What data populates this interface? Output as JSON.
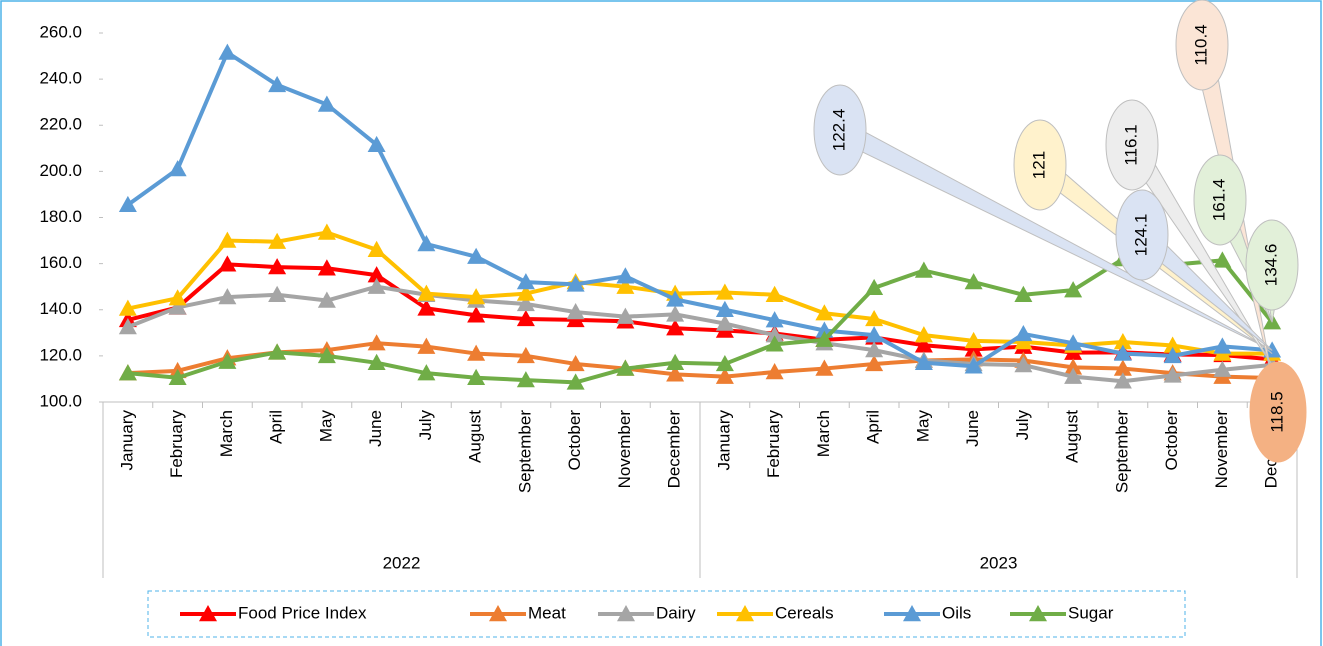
{
  "chart_data": {
    "type": "line",
    "categories": [
      "January",
      "February",
      "March",
      "April",
      "May",
      "June",
      "July",
      "August",
      "September",
      "October",
      "November",
      "December",
      "January",
      "February",
      "March",
      "April",
      "May",
      "June",
      "July",
      "August",
      "September",
      "October",
      "November",
      "December"
    ],
    "years": [
      "2022",
      "2023"
    ],
    "ylim": [
      100,
      260
    ],
    "yticks": [
      {
        "value": 100,
        "label": "100.0"
      },
      {
        "value": 120,
        "label": "120.0"
      },
      {
        "value": 140,
        "label": "140.0"
      },
      {
        "value": 160,
        "label": "160.0"
      },
      {
        "value": 180,
        "label": "180.0"
      },
      {
        "value": 200,
        "label": "200.0"
      },
      {
        "value": 220,
        "label": "220.0"
      },
      {
        "value": 240,
        "label": "240.0"
      },
      {
        "value": 260,
        "label": "260.0"
      }
    ],
    "legend": "bottom",
    "series": [
      {
        "name": "Food Price Index",
        "color": "#ff0000",
        "values": [
          135.6,
          141,
          159.7,
          158.5,
          158,
          155,
          140.6,
          137.6,
          136,
          135.6,
          135,
          132,
          131,
          129.7,
          127,
          128,
          124.6,
          122.8,
          124,
          121.4,
          121.5,
          120.6,
          120.4,
          118.5
        ]
      },
      {
        "name": "Meat",
        "color": "#ed7d31",
        "values": [
          112.5,
          113.5,
          119,
          121.5,
          122.5,
          125.5,
          124,
          121,
          120,
          116.5,
          114.5,
          112,
          111,
          113,
          114.5,
          116.5,
          118,
          118.5,
          118,
          115,
          114.5,
          112.5,
          111,
          110.4
        ]
      },
      {
        "name": "Dairy",
        "color": "#a5a5a5",
        "values": [
          132.5,
          141,
          145.5,
          146.5,
          144,
          150,
          146.5,
          144,
          142.5,
          139,
          137,
          138,
          134,
          129,
          125.5,
          122.5,
          118,
          116.5,
          116,
          111,
          109,
          111.5,
          114,
          116.1
        ]
      },
      {
        "name": "Cereals",
        "color": "#ffc000",
        "values": [
          140.5,
          145,
          170,
          169.5,
          173.5,
          166,
          147,
          145.5,
          147,
          152,
          150,
          147,
          147.5,
          146.5,
          138.5,
          136,
          129,
          126.5,
          126,
          124.5,
          126,
          124.5,
          121,
          121
        ]
      },
      {
        "name": "Oils",
        "color": "#5b9bd5",
        "values": [
          185.5,
          201,
          251.5,
          237.5,
          229,
          211.5,
          168.5,
          163,
          152,
          151,
          154.5,
          144.5,
          140,
          135.5,
          131,
          129,
          117,
          115.5,
          129.5,
          125.5,
          121,
          120,
          124.1,
          122.4
        ]
      },
      {
        "name": "Sugar",
        "color": "#70ad47",
        "values": [
          112.5,
          110.5,
          117.5,
          121.5,
          120,
          117,
          112.5,
          110.5,
          109.5,
          108.5,
          114.5,
          117,
          116.5,
          125,
          127,
          149.5,
          157,
          152,
          146.5,
          148.5,
          162,
          159.5,
          161.4,
          134.6
        ]
      }
    ],
    "annotations": [
      {
        "text": "122.4",
        "color": "#dae3f3"
      },
      {
        "text": "121",
        "color": "#fff2cc"
      },
      {
        "text": "116.1",
        "color": "#ededed"
      },
      {
        "text": "110.4",
        "color": "#fbe5d6"
      },
      {
        "text": "124.1",
        "color": "#dae3f3"
      },
      {
        "text": "161.4",
        "color": "#e2f0d9"
      },
      {
        "text": "134.6",
        "color": "#e2f0d9"
      },
      {
        "text": "118.5",
        "color": "#f4b183"
      }
    ]
  }
}
